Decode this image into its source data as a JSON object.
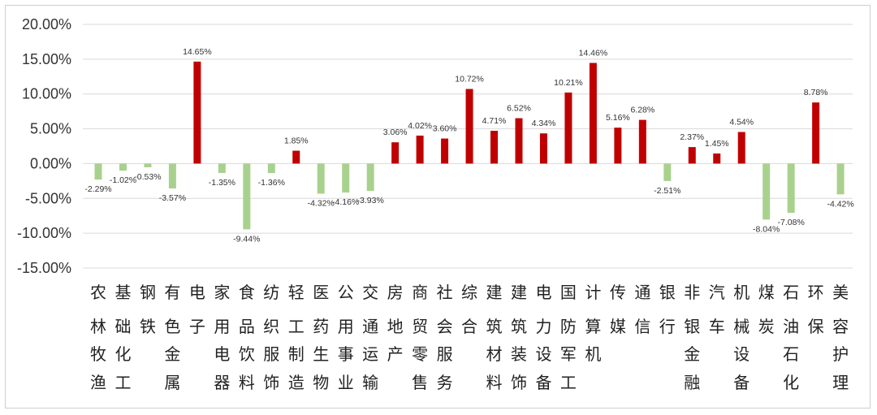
{
  "chart_data": {
    "type": "bar",
    "title": "",
    "xlabel": "",
    "ylabel": "",
    "ylim": [
      -15,
      20
    ],
    "y_ticks": [
      20,
      15,
      10,
      5,
      0,
      -5,
      -10,
      -15
    ],
    "y_tick_labels": [
      "20.00%",
      "15.00%",
      "10.00%",
      "5.00%",
      "0.00%",
      "-5.00%",
      "-10.00%",
      "-15.00%"
    ],
    "grid": true,
    "legend": "none",
    "colors": {
      "positive": "#C00000",
      "negative": "#A9D18E",
      "grid": "#D9D9D9",
      "text": "#333333"
    },
    "categories": [
      "农林牧渔",
      "基础化工",
      "钢铁",
      "有色金属",
      "电子",
      "家用电器",
      "食品饮料",
      "纺织服饰",
      "轻工制造",
      "医药生物",
      "公用事业",
      "交通运输",
      "房地产",
      "商贸零售",
      "社会服务",
      "综合",
      "建筑材料",
      "建筑装饰",
      "电力设备",
      "国防军工",
      "计算机",
      "传媒",
      "通信",
      "银行",
      "非银金融",
      "汽车",
      "机械设备",
      "煤炭",
      "石油石化",
      "环保",
      "美容护理"
    ],
    "category_lines": [
      [
        "农",
        "林",
        "牧",
        "渔"
      ],
      [
        "基",
        "础",
        "化",
        "工"
      ],
      [
        "钢",
        "铁",
        "",
        ""
      ],
      [
        "有",
        "色",
        "金",
        "属"
      ],
      [
        "电",
        "子",
        "",
        ""
      ],
      [
        "家",
        "用",
        "电",
        "器"
      ],
      [
        "食",
        "品",
        "饮",
        "料"
      ],
      [
        "纺",
        "织",
        "服",
        "饰"
      ],
      [
        "轻",
        "工",
        "制",
        "造"
      ],
      [
        "医",
        "药",
        "生",
        "物"
      ],
      [
        "公",
        "用",
        "事",
        "业"
      ],
      [
        "交",
        "通",
        "运",
        "输"
      ],
      [
        "房",
        "地",
        "产",
        ""
      ],
      [
        "商",
        "贸",
        "零",
        "售"
      ],
      [
        "社",
        "会",
        "服",
        "务"
      ],
      [
        "综",
        "合",
        "",
        ""
      ],
      [
        "建",
        "筑",
        "材",
        "料"
      ],
      [
        "建",
        "筑",
        "装",
        "饰"
      ],
      [
        "电",
        "力",
        "设",
        "备"
      ],
      [
        "国",
        "防",
        "军",
        "工"
      ],
      [
        "计",
        "算",
        "机",
        ""
      ],
      [
        "传",
        "媒",
        "",
        ""
      ],
      [
        "通",
        "信",
        "",
        ""
      ],
      [
        "银",
        "行",
        "",
        ""
      ],
      [
        "非",
        "银",
        "金",
        "融"
      ],
      [
        "汽",
        "车",
        "",
        ""
      ],
      [
        "机",
        "械",
        "设",
        "备"
      ],
      [
        "煤",
        "炭",
        "",
        ""
      ],
      [
        "石",
        "油",
        "石",
        "化"
      ],
      [
        "环",
        "保",
        "",
        ""
      ],
      [
        "美",
        "容",
        "护",
        "理"
      ]
    ],
    "values": [
      -2.29,
      -1.02,
      -0.53,
      -3.57,
      14.65,
      -1.35,
      -9.44,
      -1.36,
      1.85,
      -4.32,
      -4.16,
      -3.93,
      3.06,
      4.02,
      3.6,
      10.72,
      4.71,
      6.52,
      4.34,
      10.21,
      14.46,
      5.16,
      6.28,
      -2.51,
      2.37,
      1.45,
      4.54,
      -8.04,
      -7.08,
      8.78,
      -4.42
    ],
    "value_labels": [
      "-2.29%",
      "-1.02%",
      "-0.53%",
      "-3.57%",
      "14.65%",
      "-1.35%",
      "-9.44%",
      "-1.36%",
      "1.85%",
      "-4.32%",
      "-4.16%",
      "-3.93%",
      "3.06%",
      "4.02%",
      "3.60%",
      "10.72%",
      "4.71%",
      "6.52%",
      "4.34%",
      "10.21%",
      "14.46%",
      "5.16%",
      "6.28%",
      "-2.51%",
      "2.37%",
      "1.45%",
      "4.54%",
      "-8.04%",
      "-7.08%",
      "8.78%",
      "-4.42%"
    ]
  }
}
